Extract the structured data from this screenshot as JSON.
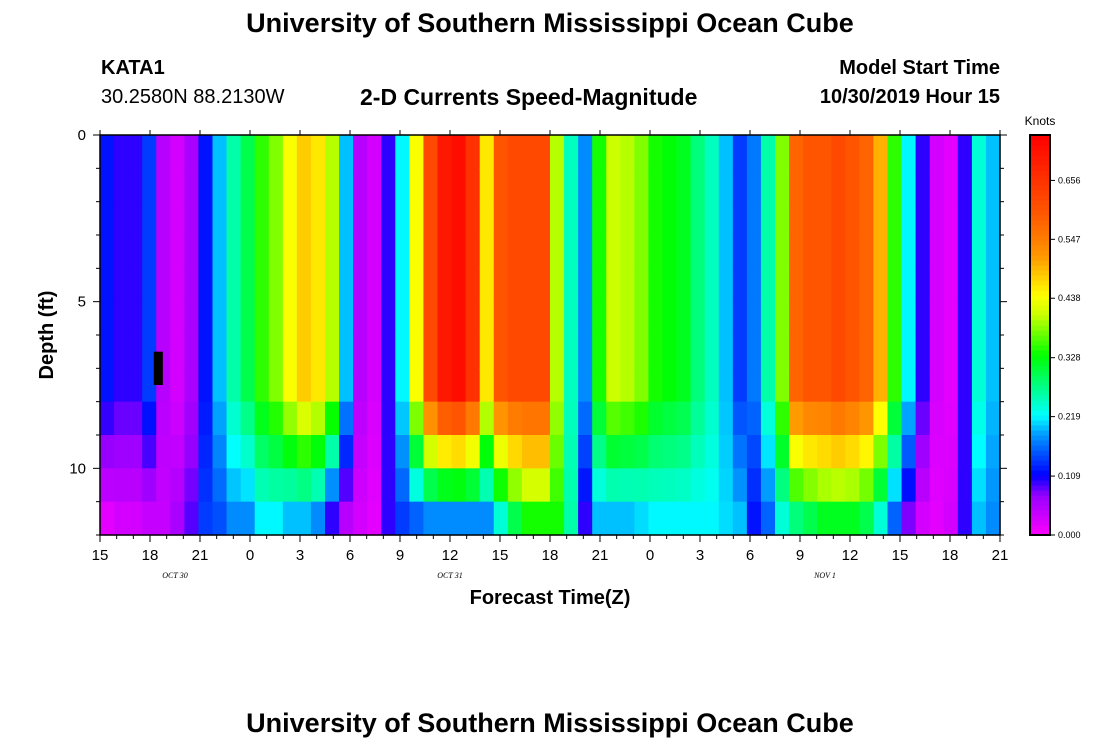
{
  "header": {
    "title": "University of Southern Mississippi Ocean Cube",
    "station": "KATA1",
    "coordinates": "30.2580N 88.2130W",
    "subtitle": "2-D Currents Speed-Magnitude",
    "model_start_label": "Model Start Time",
    "model_start_value": "10/30/2019 Hour 15"
  },
  "footer": {
    "title": "University of Southern Mississippi Ocean Cube"
  },
  "chart_data": {
    "type": "heatmap",
    "title": "2-D Currents Speed-Magnitude",
    "xlabel": "Forecast Time(Z)",
    "ylabel": "Depth (ft)",
    "xlim": [
      0,
      54
    ],
    "ylim": [
      0,
      12
    ],
    "x_tick_labels": [
      "15",
      "18",
      "21",
      "0",
      "3",
      "6",
      "9",
      "12",
      "15",
      "18",
      "21",
      "0",
      "3",
      "6",
      "9",
      "12",
      "15",
      "18",
      "21"
    ],
    "y_tick_labels": [
      "0",
      "5",
      "10"
    ],
    "y_tick_values": [
      0,
      5,
      10
    ],
    "date_labels": [
      {
        "text": "OCT  30",
        "hour": 4.5
      },
      {
        "text": "OCT  31",
        "hour": 21
      },
      {
        "text": "NOV  1",
        "hour": 43.5
      }
    ],
    "colorbar": {
      "unit": "Knots",
      "tick_values": [
        0.0,
        0.109,
        0.219,
        0.328,
        0.438,
        0.547,
        0.656
      ],
      "tick_labels": [
        "0.000",
        "0.109",
        "0.219",
        "0.328",
        "0.438",
        "0.547",
        "0.656"
      ],
      "min": 0.0,
      "max": 0.74
    },
    "surface_profile": [
      0.12,
      0.1,
      0.1,
      0.14,
      0.05,
      0.03,
      0.06,
      0.12,
      0.2,
      0.26,
      0.3,
      0.35,
      0.38,
      0.44,
      0.48,
      0.46,
      0.4,
      0.2,
      0.05,
      0.03,
      0.1,
      0.22,
      0.44,
      0.62,
      0.7,
      0.72,
      0.66,
      0.46,
      0.6,
      0.62,
      0.62,
      0.62,
      0.4,
      0.25,
      0.18,
      0.34,
      0.41,
      0.4,
      0.38,
      0.34,
      0.33,
      0.32,
      0.28,
      0.25,
      0.2,
      0.14,
      0.17,
      0.26,
      0.38,
      0.58,
      0.6,
      0.6,
      0.62,
      0.6,
      0.58,
      0.5,
      0.35,
      0.22,
      0.1,
      0.03,
      0.02,
      0.1,
      0.24,
      0.2
    ],
    "bottom_profile": [
      0.02,
      0.03,
      0.03,
      0.04,
      0.04,
      0.06,
      0.09,
      0.14,
      0.15,
      0.18,
      0.18,
      0.22,
      0.22,
      0.2,
      0.2,
      0.18,
      0.1,
      0.05,
      0.03,
      0.02,
      0.1,
      0.14,
      0.16,
      0.18,
      0.18,
      0.18,
      0.18,
      0.18,
      0.24,
      0.3,
      0.34,
      0.34,
      0.34,
      0.26,
      0.1,
      0.2,
      0.2,
      0.2,
      0.21,
      0.22,
      0.22,
      0.22,
      0.22,
      0.22,
      0.21,
      0.2,
      0.12,
      0.16,
      0.24,
      0.28,
      0.3,
      0.32,
      0.32,
      0.32,
      0.3,
      0.24,
      0.16,
      0.08,
      0.03,
      0.02,
      0.03,
      0.1,
      0.2,
      0.18
    ],
    "missing_cell": {
      "hour": 3.5,
      "depth_from": 6.5,
      "depth_to": 7.5
    }
  }
}
